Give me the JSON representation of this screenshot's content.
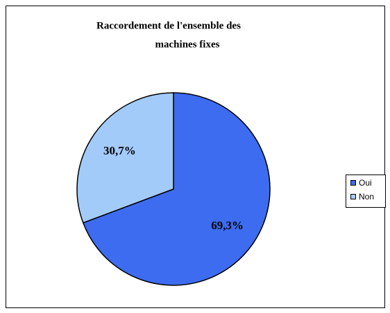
{
  "chart_data": {
    "type": "pie",
    "title": [
      "Raccordement de l'ensemble des",
      "machines fixes"
    ],
    "categories": [
      "Oui",
      "Non"
    ],
    "values": [
      69.3,
      30.7
    ],
    "value_labels": [
      "69,3%",
      "30,7%"
    ],
    "colors": [
      "#3d6cf0",
      "#a3cbf9"
    ],
    "legend": "right"
  }
}
